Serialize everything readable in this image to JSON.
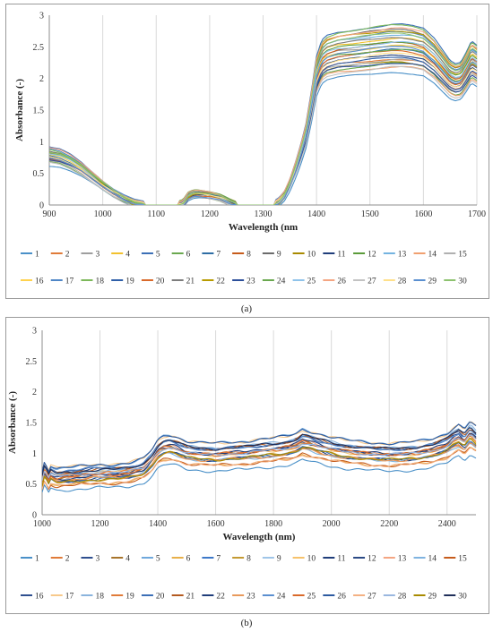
{
  "figure": {
    "caption_a": "(a)",
    "caption_b": "(b)"
  },
  "chart_data": [
    {
      "type": "line",
      "ylabel": "Absorbance (-)",
      "xlabel": "Wavelength (nm",
      "xlim": [
        900,
        1700
      ],
      "ylim": [
        0,
        3
      ],
      "x_ticks": [
        900,
        1000,
        1100,
        1200,
        1300,
        1400,
        1500,
        1600,
        1700
      ],
      "y_ticks": [
        0,
        0.5,
        1,
        1.5,
        2,
        2.5,
        3
      ],
      "grid": "vertical",
      "legend": "bottom",
      "legend_rows": 2,
      "series_names": [
        "1",
        "2",
        "3",
        "4",
        "5",
        "6",
        "7",
        "8",
        "9",
        "10",
        "11",
        "12",
        "13",
        "14",
        "15",
        "16",
        "17",
        "18",
        "19",
        "20",
        "21",
        "22",
        "23",
        "24",
        "25",
        "26",
        "27",
        "28",
        "29",
        "30"
      ],
      "colors": [
        "#4a90c8",
        "#e07b39",
        "#9e9e9e",
        "#f2c12e",
        "#3b6fb6",
        "#6aa84f",
        "#2e6da4",
        "#c65b1b",
        "#6b6b6b",
        "#a88a00",
        "#1f3d7a",
        "#5b9b3a",
        "#74b3e0",
        "#f0a070",
        "#b0b0b0",
        "#ffd24d",
        "#4f86c6",
        "#7cb85a",
        "#2f5fa8",
        "#d9692a",
        "#7d7d7d",
        "#b89b00",
        "#2c4f9a",
        "#6aa84f",
        "#8fc3ea",
        "#f4a582",
        "#c2c2c2",
        "#ffe08a",
        "#5a8fd0",
        "#8dc26f"
      ],
      "base_curve": {
        "x": [
          900,
          920,
          940,
          960,
          980,
          1000,
          1020,
          1040,
          1060,
          1080,
          1100,
          1120,
          1140,
          1150,
          1160,
          1170,
          1180,
          1200,
          1220,
          1240,
          1250,
          1260,
          1280,
          1300,
          1310,
          1320,
          1330,
          1340,
          1350,
          1360,
          1370,
          1380,
          1390,
          1400,
          1410,
          1420,
          1440,
          1460,
          1480,
          1500,
          1520,
          1540,
          1560,
          1580,
          1600,
          1620,
          1640,
          1650,
          1660,
          1670,
          1680,
          1690,
          1700
        ],
        "y": [
          0.78,
          0.75,
          0.68,
          0.58,
          0.45,
          0.32,
          0.2,
          0.1,
          0.03,
          0.0,
          0.0,
          0.0,
          0.0,
          0.02,
          0.14,
          0.18,
          0.18,
          0.16,
          0.12,
          0.04,
          0.0,
          0.0,
          0.0,
          0.0,
          0.0,
          0.0,
          0.05,
          0.15,
          0.32,
          0.55,
          0.8,
          1.1,
          1.55,
          2.05,
          2.28,
          2.35,
          2.4,
          2.42,
          2.44,
          2.46,
          2.48,
          2.5,
          2.5,
          2.48,
          2.44,
          2.3,
          2.1,
          2.0,
          1.96,
          1.98,
          2.12,
          2.28,
          2.22
        ]
      }
    },
    {
      "type": "line",
      "ylabel": "Absorbance (-)",
      "xlabel": "Wavelength (nm)",
      "xlim": [
        1000,
        2500
      ],
      "ylim": [
        0,
        3
      ],
      "x_ticks": [
        1000,
        1200,
        1400,
        1600,
        1800,
        2000,
        2200,
        2400
      ],
      "y_ticks": [
        0,
        0.5,
        1,
        1.5,
        2,
        2.5,
        3
      ],
      "grid": "vertical",
      "legend": "bottom",
      "legend_rows": 2,
      "series_names": [
        "1",
        "2",
        "3",
        "4",
        "5",
        "6",
        "7",
        "8",
        "9",
        "10",
        "11",
        "12",
        "13",
        "14",
        "15",
        "16",
        "17",
        "18",
        "19",
        "20",
        "21",
        "22",
        "23",
        "24",
        "25",
        "26",
        "27",
        "28",
        "29",
        "30"
      ],
      "colors": [
        "#4a90c8",
        "#e07b39",
        "#2e4f8f",
        "#a7742b",
        "#6fa8dc",
        "#e8b04a",
        "#3c78c8",
        "#c49a33",
        "#9fc5e8",
        "#f6c26b",
        "#1f3d7a",
        "#2b4a85",
        "#f4a582",
        "#7fb3e0",
        "#c65b1b",
        "#2e4f8f",
        "#f7c98b",
        "#8ab4dd",
        "#e07b39",
        "#3b6fb6",
        "#b35a1f",
        "#1f3d7a",
        "#e89a5c",
        "#5b8fd0",
        "#d9692a",
        "#2c5aa0",
        "#f4b183",
        "#9ab7df",
        "#a88a00",
        "#1f2f5a"
      ],
      "base_curve": {
        "x": [
          1000,
          1010,
          1020,
          1030,
          1050,
          1100,
          1150,
          1200,
          1250,
          1300,
          1350,
          1380,
          1400,
          1420,
          1440,
          1460,
          1480,
          1500,
          1550,
          1600,
          1650,
          1700,
          1750,
          1800,
          1850,
          1880,
          1900,
          1920,
          1950,
          2000,
          2050,
          2100,
          2150,
          2200,
          2250,
          2300,
          2350,
          2400,
          2420,
          2440,
          2460,
          2480,
          2500
        ],
        "y": [
          0.55,
          0.75,
          0.55,
          0.65,
          0.6,
          0.62,
          0.64,
          0.66,
          0.66,
          0.68,
          0.74,
          0.88,
          1.02,
          1.08,
          1.1,
          1.08,
          1.04,
          1.0,
          0.98,
          0.97,
          0.99,
          1.0,
          1.03,
          1.05,
          1.08,
          1.12,
          1.18,
          1.16,
          1.12,
          1.06,
          1.02,
          1.0,
          0.98,
          0.97,
          0.98,
          1.0,
          1.04,
          1.12,
          1.2,
          1.25,
          1.18,
          1.3,
          1.22
        ]
      }
    }
  ]
}
